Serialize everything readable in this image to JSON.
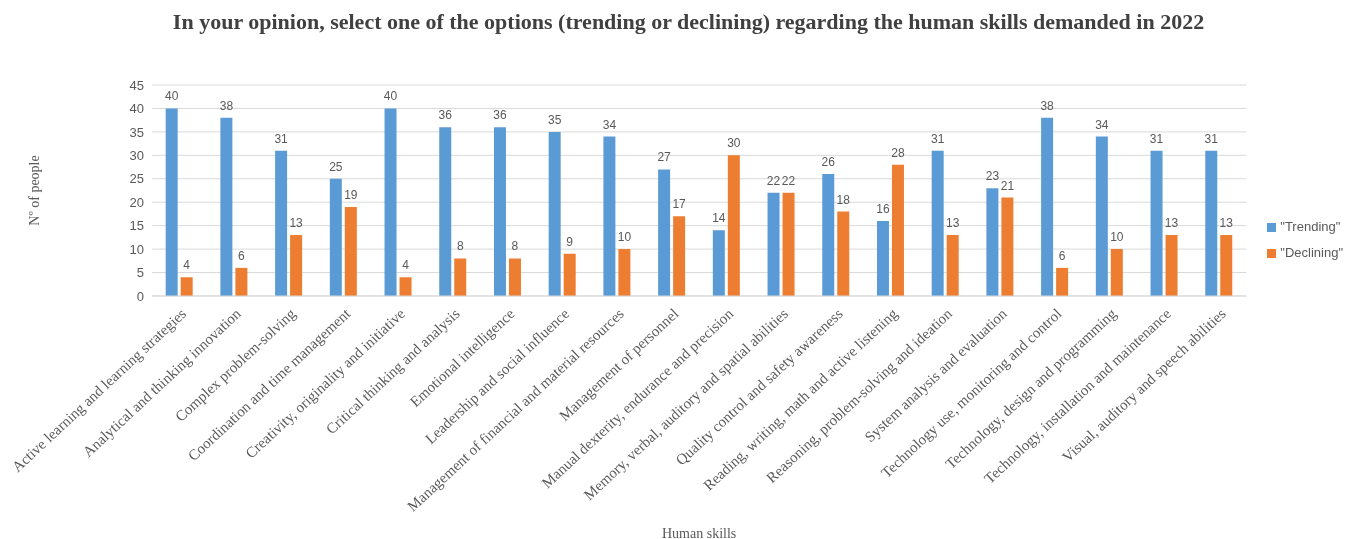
{
  "chart_data": {
    "type": "bar",
    "title": "In your opinion, select one of the options (trending or declining) regarding the human skills demanded in 2022",
    "xlabel": "Human skills",
    "ylabel": "Nº of people",
    "categories": [
      "Active learning and learning strategies",
      "Analytical and thinking innovation",
      "Complex problem-solving",
      "Coordination and time management",
      "Creativity, originality and initiative",
      "Critical thinking and analysis",
      "Emotional intelligence",
      "Leadership and social influence",
      "Management of financial and material resources",
      "Management of personnel",
      "Manual dexterity, endurance and precision",
      "Memory, verbal, auditory and spatial abilities",
      "Quality control and safety awareness",
      "Reading, writing, math and active listening",
      "Reasoning, problem-solving and ideation",
      "System analysis and evaluation",
      "Technology use, monitoring and control",
      "Technology, design and programming",
      "Technology, installation and maintenance",
      "Visual, auditory and speech abilities"
    ],
    "series": [
      {
        "name": "\"Trending\"",
        "color": "#5b9bd5",
        "values": [
          40,
          38,
          31,
          25,
          40,
          36,
          36,
          35,
          34,
          27,
          14,
          22,
          26,
          16,
          31,
          23,
          38,
          34,
          31,
          31
        ]
      },
      {
        "name": "\"Declining\"",
        "color": "#ed7d31",
        "values": [
          4,
          6,
          13,
          19,
          4,
          8,
          8,
          9,
          10,
          17,
          30,
          22,
          18,
          28,
          13,
          21,
          6,
          10,
          13,
          13
        ]
      }
    ],
    "ylim": [
      0,
      45
    ],
    "yticks": [
      0,
      5,
      10,
      15,
      20,
      25,
      30,
      35,
      40,
      45
    ],
    "grid": "y",
    "legend": "right",
    "data_labels": true
  }
}
